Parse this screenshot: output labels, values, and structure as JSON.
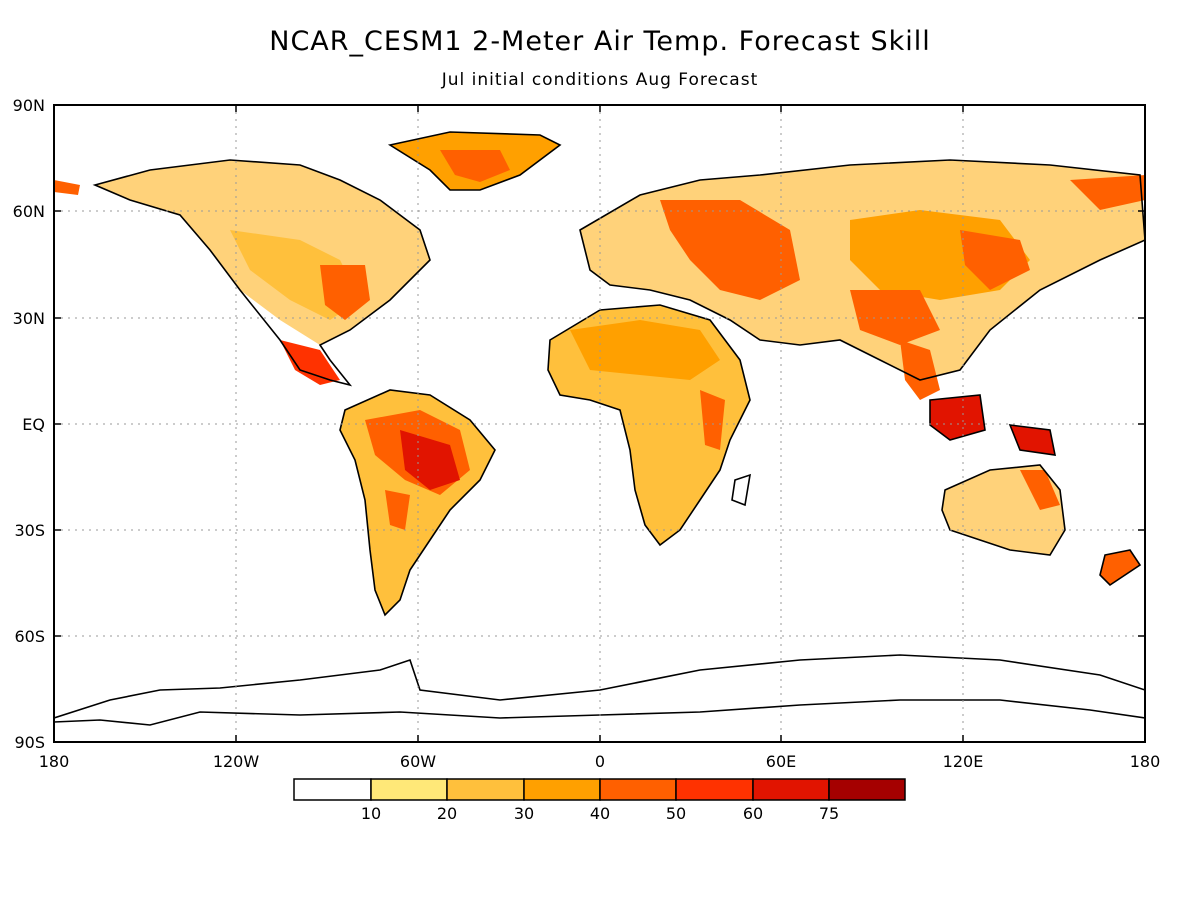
{
  "title": "NCAR_CESM1 2-Meter Air Temp. Forecast Skill",
  "subtitle": "Jul initial conditions  Aug Forecast",
  "lat_labels": [
    "90N",
    "60N",
    "30N",
    "EQ",
    "30S",
    "60S",
    "90S"
  ],
  "lon_labels": [
    "180",
    "120W",
    "60W",
    "0",
    "60E",
    "120E",
    "180"
  ],
  "colorbar": {
    "labels": [
      "10",
      "20",
      "30",
      "40",
      "50",
      "60",
      "75"
    ],
    "colors": [
      "#ffffff",
      "#ffe878",
      "#ffc03c",
      "#ffa000",
      "#ff6000",
      "#ff3200",
      "#e11400",
      "#a50000"
    ]
  },
  "land_color": "#ffffff",
  "ocean_color": "#ffffff"
}
